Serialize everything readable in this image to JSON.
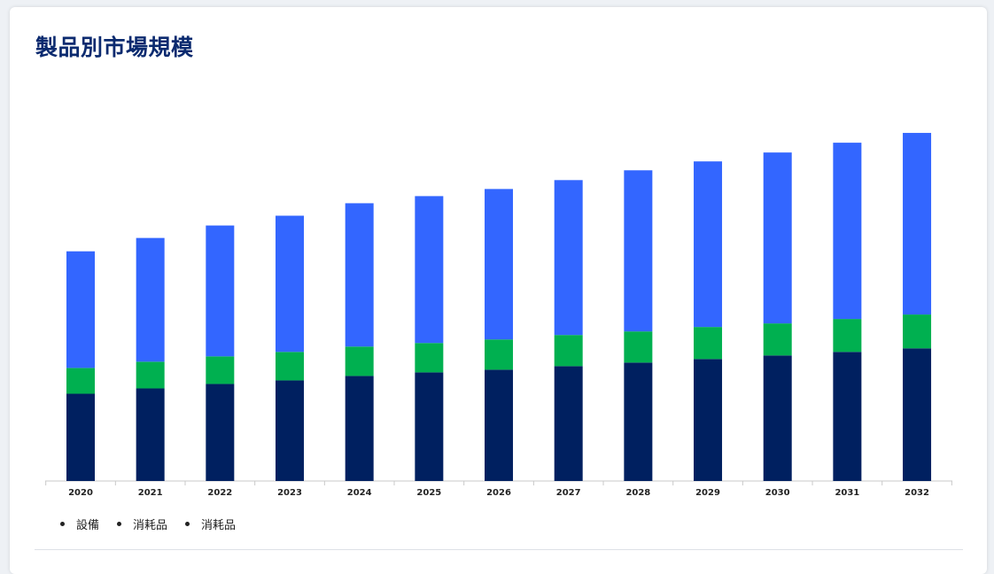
{
  "title": "製品別市場規模",
  "colors": {
    "series": [
      "#002060",
      "#00b050",
      "#3366ff"
    ]
  },
  "legend": [
    {
      "label": "設備",
      "color": "#002060"
    },
    {
      "label": "消耗品",
      "color": "#00b050"
    },
    {
      "label": "消耗品",
      "color": "#3366ff"
    }
  ],
  "chart_data": {
    "type": "bar",
    "stacked": true,
    "categories": [
      "2020",
      "2021",
      "2022",
      "2023",
      "2024",
      "2025",
      "2026",
      "2027",
      "2028",
      "2029",
      "2030",
      "2031",
      "2032"
    ],
    "series": [
      {
        "name": "設備",
        "values": [
          98,
          104,
          109,
          113,
          118,
          122,
          125,
          129,
          133,
          137,
          141,
          145,
          149
        ]
      },
      {
        "name": "消耗品",
        "values": [
          29,
          30,
          31,
          32,
          33,
          33,
          34,
          35,
          35,
          36,
          36,
          37,
          38
        ]
      },
      {
        "name": "消耗品",
        "values": [
          131,
          139,
          147,
          153,
          161,
          165,
          169,
          174,
          181,
          186,
          192,
          198,
          204
        ]
      }
    ],
    "ylim": [
      0,
      400
    ],
    "grid": false,
    "legend_position": "bottom-left"
  }
}
